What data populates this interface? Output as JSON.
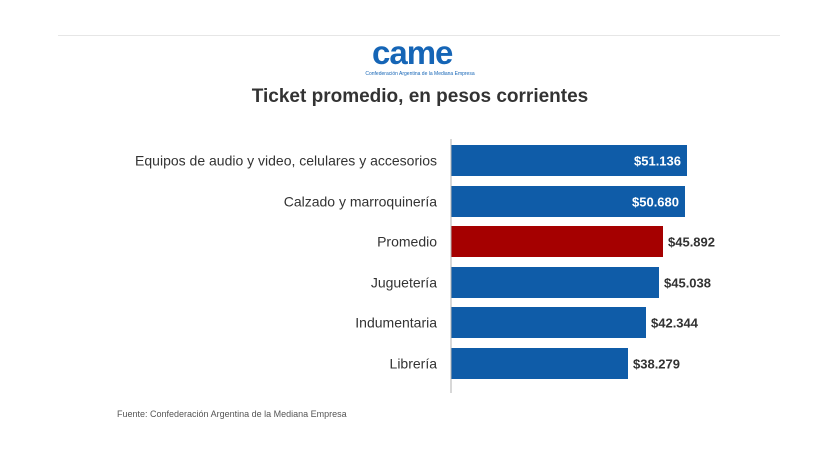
{
  "logo": {
    "word": "came",
    "subtitle": "Confederación Argentina de la Mediana Empresa"
  },
  "source": "Fuente: Confederación Argentina de la Mediana Empresa",
  "colors": {
    "bar": "#0f5ca8",
    "highlight": "#a50000",
    "label_inside": "#ffffff",
    "label_outside": "#333333",
    "axis": "#b0b0b0"
  },
  "chart_data": {
    "type": "bar",
    "orientation": "horizontal",
    "title": "Ticket promedio, en pesos corrientes",
    "categories": [
      "Equipos de audio y video, celulares y accesorios",
      "Calzado y marroquinería",
      "Promedio",
      "Juguetería",
      "Indumentaria",
      "Librería"
    ],
    "values": [
      51136,
      50680,
      45892,
      45038,
      42344,
      38279
    ],
    "value_labels": [
      "$51.136",
      "$50.680",
      "$45.892",
      "$45.038",
      "$42.344",
      "$38.279"
    ],
    "highlight_category": "Promedio",
    "xlim": [
      0,
      51136
    ],
    "grid": false,
    "legend": "none"
  }
}
